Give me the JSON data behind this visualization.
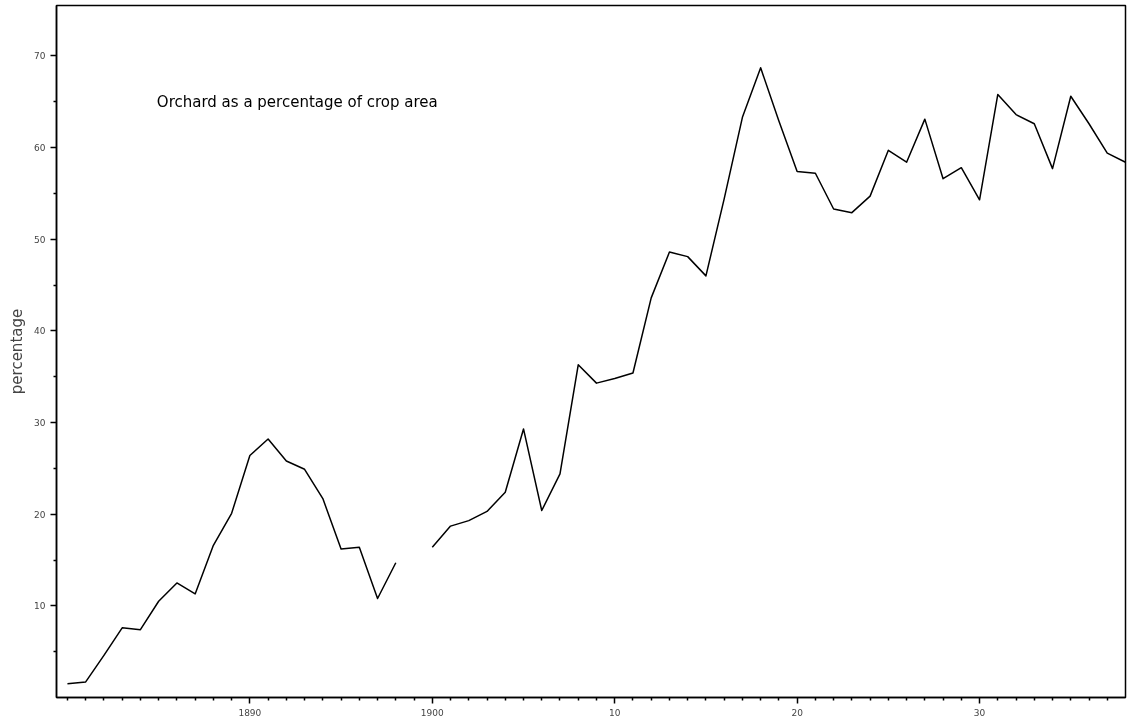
{
  "chart_data": {
    "type": "line",
    "title": "Orchard as a percentage of crop area",
    "ylabel": "percentage",
    "x": [
      1880,
      1881,
      1882,
      1883,
      1884,
      1885,
      1886,
      1887,
      1888,
      1889,
      1890,
      1891,
      1892,
      1893,
      1894,
      1895,
      1896,
      1897,
      1898,
      1899,
      1900,
      1901,
      1902,
      1903,
      1904,
      1905,
      1906,
      1907,
      1908,
      1909,
      1910,
      1911,
      1912,
      1913,
      1914,
      1915,
      1916,
      1917,
      1918,
      1919,
      1920,
      1921,
      1922,
      1923,
      1924,
      1925,
      1926,
      1927,
      1928,
      1929,
      1930,
      1931,
      1932,
      1933,
      1934,
      1935,
      1936,
      1937,
      1938
    ],
    "series": [
      {
        "color": "#000000",
        "values": [
          1.5,
          1.7,
          4.6,
          7.6,
          7.4,
          10.5,
          12.5,
          11.3,
          16.6,
          20.1,
          26.4,
          28.2,
          25.8,
          24.9,
          21.7,
          16.2,
          16.4,
          10.8,
          14.7,
          null,
          16.4,
          18.7,
          19.3,
          20.3,
          22.4,
          29.3,
          20.4,
          24.4,
          36.3,
          34.3,
          34.8,
          35.4,
          43.6,
          48.6,
          48.1,
          46.0,
          54.4,
          63.3,
          68.7,
          62.9,
          57.4,
          57.2,
          53.3,
          52.9,
          54.7,
          59.7,
          58.4,
          63.1,
          56.6,
          57.8,
          54.3,
          65.8,
          63.6,
          62.6,
          57.7,
          65.6,
          62.6,
          59.4,
          58.4
        ]
      }
    ],
    "xlim": [
      1879.4,
      1938
    ],
    "xticks": [
      {
        "value": 1880,
        "label": null
      },
      {
        "value": 1881,
        "label": null
      },
      {
        "value": 1882,
        "label": null
      },
      {
        "value": 1883,
        "label": null
      },
      {
        "value": 1884,
        "label": null
      },
      {
        "value": 1885,
        "label": null
      },
      {
        "value": 1886,
        "label": null
      },
      {
        "value": 1887,
        "label": null
      },
      {
        "value": 1888,
        "label": null
      },
      {
        "value": 1889,
        "label": null
      },
      1890,
      {
        "value": 1891,
        "label": null
      },
      {
        "value": 1892,
        "label": null
      },
      {
        "value": 1893,
        "label": null
      },
      {
        "value": 1894,
        "label": null
      },
      {
        "value": 1895,
        "label": null
      },
      {
        "value": 1896,
        "label": null
      },
      {
        "value": 1897,
        "label": null
      },
      {
        "value": 1898,
        "label": null
      },
      {
        "value": 1899,
        "label": null
      },
      1900,
      {
        "value": 1901,
        "label": null
      },
      {
        "value": 1902,
        "label": null
      },
      {
        "value": 1903,
        "label": null
      },
      {
        "value": 1904,
        "label": null
      },
      {
        "value": 1905,
        "label": null
      },
      {
        "value": 1906,
        "label": null
      },
      {
        "value": 1907,
        "label": null
      },
      {
        "value": 1908,
        "label": null
      },
      {
        "value": 1909,
        "label": null
      },
      {
        "value": 1910,
        "label": "10"
      },
      {
        "value": 1911,
        "label": null
      },
      {
        "value": 1912,
        "label": null
      },
      {
        "value": 1913,
        "label": null
      },
      {
        "value": 1914,
        "label": null
      },
      {
        "value": 1915,
        "label": null
      },
      {
        "value": 1916,
        "label": null
      },
      {
        "value": 1917,
        "label": null
      },
      {
        "value": 1918,
        "label": null
      },
      {
        "value": 1919,
        "label": null
      },
      {
        "value": 1920,
        "label": "20"
      },
      {
        "value": 1921,
        "label": null
      },
      {
        "value": 1922,
        "label": null
      },
      {
        "value": 1923,
        "label": null
      },
      {
        "value": 1924,
        "label": null
      },
      {
        "value": 1925,
        "label": null
      },
      {
        "value": 1926,
        "label": null
      },
      {
        "value": 1927,
        "label": null
      },
      {
        "value": 1928,
        "label": null
      },
      {
        "value": 1929,
        "label": null
      },
      {
        "value": 1930,
        "label": "30"
      },
      {
        "value": 1931,
        "label": null
      },
      {
        "value": 1932,
        "label": null
      },
      {
        "value": 1933,
        "label": null
      },
      {
        "value": 1934,
        "label": null
      },
      {
        "value": 1935,
        "label": null
      },
      {
        "value": 1936,
        "label": null
      },
      {
        "value": 1937,
        "label": null
      }
    ],
    "ylim": [
      0,
      75.5
    ],
    "yticks": [
      {
        "value": 5,
        "label": null
      },
      10,
      {
        "value": 15,
        "label": null
      },
      20,
      {
        "value": 25,
        "label": null
      },
      30,
      {
        "value": 35,
        "label": null
      },
      40,
      {
        "value": 45,
        "label": null
      },
      50,
      {
        "value": 55,
        "label": null
      },
      60,
      {
        "value": 65,
        "label": null
      },
      70
    ],
    "grid": false,
    "marker": "none",
    "line_style": "solid"
  }
}
